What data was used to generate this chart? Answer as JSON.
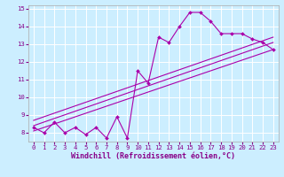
{
  "xlabel": "Windchill (Refroidissement éolien,°C)",
  "bg_color": "#cceeff",
  "line_color": "#aa00aa",
  "x_data": [
    0,
    1,
    2,
    3,
    4,
    5,
    6,
    7,
    8,
    9,
    10,
    11,
    12,
    13,
    14,
    15,
    16,
    17,
    18,
    19,
    20,
    21,
    22,
    23
  ],
  "y_data": [
    8.3,
    8.0,
    8.6,
    8.0,
    8.3,
    7.9,
    8.3,
    7.7,
    8.9,
    7.7,
    11.5,
    10.8,
    13.4,
    13.1,
    14.0,
    14.8,
    14.8,
    14.3,
    13.6,
    13.6,
    13.6,
    13.3,
    13.1,
    12.7
  ],
  "trend1_x": [
    0,
    23
  ],
  "trend1_y": [
    8.1,
    12.7
  ],
  "trend2_x": [
    0,
    23
  ],
  "trend2_y": [
    8.4,
    13.1
  ],
  "trend3_x": [
    0,
    23
  ],
  "trend3_y": [
    8.7,
    13.4
  ],
  "ylim": [
    7.5,
    15.2
  ],
  "xlim": [
    -0.5,
    23.5
  ],
  "yticks": [
    8,
    9,
    10,
    11,
    12,
    13,
    14,
    15
  ],
  "xticks": [
    0,
    1,
    2,
    3,
    4,
    5,
    6,
    7,
    8,
    9,
    10,
    11,
    12,
    13,
    14,
    15,
    16,
    17,
    18,
    19,
    20,
    21,
    22,
    23
  ],
  "tick_fontsize": 5.2,
  "xlabel_fontsize": 6.0
}
